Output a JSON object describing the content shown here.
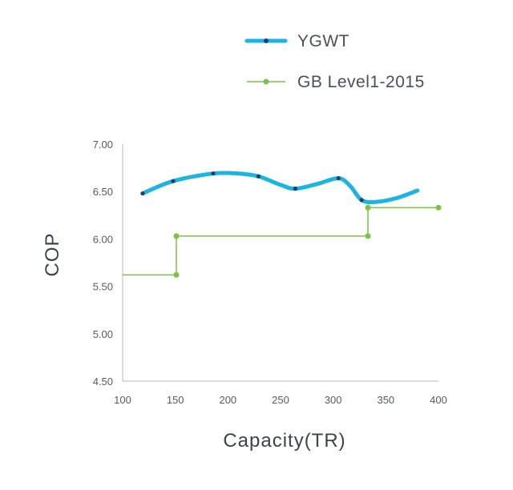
{
  "chart_data": {
    "type": "line",
    "xlabel": "Capacity(TR)",
    "ylabel": "COP",
    "xlim": [
      100,
      400
    ],
    "ylim": [
      4.5,
      7.0
    ],
    "x_ticks": [
      "100",
      "150",
      "200",
      "250",
      "300",
      "350",
      "400"
    ],
    "y_ticks": [
      "7.00",
      "6.50",
      "6.00",
      "5.50",
      "5.00",
      "4.50"
    ],
    "grid": false,
    "legend_position": "top-right",
    "series": [
      {
        "name": "YGWT",
        "color": "#1cb4e0",
        "marker_color": "#1f3f6e",
        "style": "smooth",
        "points": [
          [
            119,
            6.48
          ],
          [
            148,
            6.61
          ],
          [
            186,
            6.69
          ],
          [
            229,
            6.66
          ],
          [
            264,
            6.53
          ],
          [
            305,
            6.64
          ],
          [
            327,
            6.41
          ]
        ],
        "curve_points": [
          [
            119,
            6.48
          ],
          [
            148,
            6.61
          ],
          [
            186,
            6.69
          ],
          [
            210,
            6.69
          ],
          [
            229,
            6.66
          ],
          [
            250,
            6.57
          ],
          [
            264,
            6.53
          ],
          [
            285,
            6.58
          ],
          [
            305,
            6.64
          ],
          [
            316,
            6.56
          ],
          [
            327,
            6.41
          ],
          [
            340,
            6.39
          ],
          [
            360,
            6.43
          ],
          [
            380,
            6.51
          ]
        ]
      },
      {
        "name": "GB Level1-2015",
        "color": "#7dc242",
        "marker_color": "#7dc242",
        "style": "step",
        "points": [
          [
            151,
            5.62
          ],
          [
            151,
            6.03
          ],
          [
            333,
            6.03
          ],
          [
            333,
            6.33
          ],
          [
            400,
            6.33
          ]
        ],
        "line_points": [
          [
            100,
            5.62
          ],
          [
            151,
            5.62
          ],
          [
            151,
            6.03
          ],
          [
            333,
            6.03
          ],
          [
            333,
            6.33
          ],
          [
            400,
            6.33
          ]
        ]
      }
    ]
  }
}
